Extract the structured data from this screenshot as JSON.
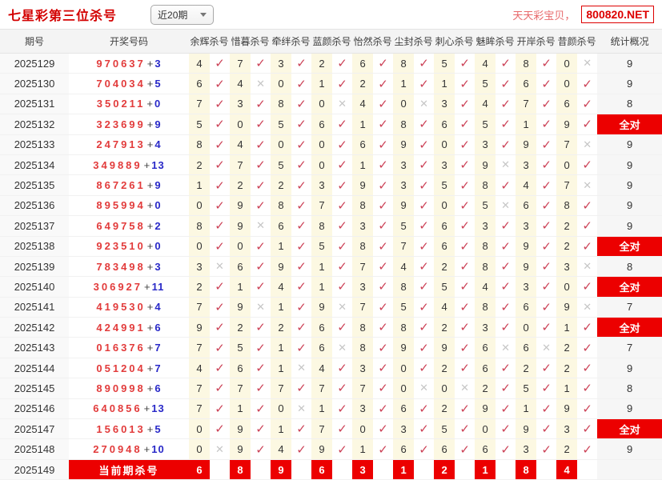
{
  "header": {
    "title": "七星彩第三位杀号",
    "range_select": {
      "value": "近20期"
    },
    "site_name": "天天彩宝贝，",
    "site_domain": "800820.NET"
  },
  "table": {
    "columns": {
      "period": "期号",
      "draw": "开奖号码",
      "experts": [
        "余辉杀号",
        "惜暮杀号",
        "牵绊杀号",
        "蓝颜杀号",
        "怡然杀号",
        "尘封杀号",
        "刺心杀号",
        "魅眸杀号",
        "开岸杀号",
        "昔颜杀号"
      ],
      "stats": "统计概况"
    },
    "all_correct_label": "全对",
    "rows": [
      {
        "period": "2025129",
        "front": "970637",
        "back": "3",
        "kills": [
          {
            "n": "4",
            "ok": true
          },
          {
            "n": "7",
            "ok": true
          },
          {
            "n": "3",
            "ok": true
          },
          {
            "n": "2",
            "ok": true
          },
          {
            "n": "6",
            "ok": true
          },
          {
            "n": "8",
            "ok": true
          },
          {
            "n": "5",
            "ok": true
          },
          {
            "n": "4",
            "ok": true
          },
          {
            "n": "8",
            "ok": true
          },
          {
            "n": "0",
            "ok": false
          }
        ],
        "stat": "9"
      },
      {
        "period": "2025130",
        "front": "704034",
        "back": "5",
        "kills": [
          {
            "n": "6",
            "ok": true
          },
          {
            "n": "4",
            "ok": false
          },
          {
            "n": "0",
            "ok": true
          },
          {
            "n": "1",
            "ok": true
          },
          {
            "n": "2",
            "ok": true
          },
          {
            "n": "1",
            "ok": true
          },
          {
            "n": "1",
            "ok": true
          },
          {
            "n": "5",
            "ok": true
          },
          {
            "n": "6",
            "ok": true
          },
          {
            "n": "0",
            "ok": true
          }
        ],
        "stat": "9"
      },
      {
        "period": "2025131",
        "front": "350211",
        "back": "0",
        "kills": [
          {
            "n": "7",
            "ok": true
          },
          {
            "n": "3",
            "ok": true
          },
          {
            "n": "8",
            "ok": true
          },
          {
            "n": "0",
            "ok": false
          },
          {
            "n": "4",
            "ok": true
          },
          {
            "n": "0",
            "ok": false
          },
          {
            "n": "3",
            "ok": true
          },
          {
            "n": "4",
            "ok": true
          },
          {
            "n": "7",
            "ok": true
          },
          {
            "n": "6",
            "ok": true
          }
        ],
        "stat": "8"
      },
      {
        "period": "2025132",
        "front": "323699",
        "back": "9",
        "kills": [
          {
            "n": "5",
            "ok": true
          },
          {
            "n": "0",
            "ok": true
          },
          {
            "n": "5",
            "ok": true
          },
          {
            "n": "6",
            "ok": true
          },
          {
            "n": "1",
            "ok": true
          },
          {
            "n": "8",
            "ok": true
          },
          {
            "n": "6",
            "ok": true
          },
          {
            "n": "5",
            "ok": true
          },
          {
            "n": "1",
            "ok": true
          },
          {
            "n": "9",
            "ok": true
          }
        ],
        "stat": "全对"
      },
      {
        "period": "2025133",
        "front": "247913",
        "back": "4",
        "kills": [
          {
            "n": "8",
            "ok": true
          },
          {
            "n": "4",
            "ok": true
          },
          {
            "n": "0",
            "ok": true
          },
          {
            "n": "0",
            "ok": true
          },
          {
            "n": "6",
            "ok": true
          },
          {
            "n": "9",
            "ok": true
          },
          {
            "n": "0",
            "ok": true
          },
          {
            "n": "3",
            "ok": true
          },
          {
            "n": "9",
            "ok": true
          },
          {
            "n": "7",
            "ok": false
          }
        ],
        "stat": "9"
      },
      {
        "period": "2025134",
        "front": "349889",
        "back": "13",
        "kills": [
          {
            "n": "2",
            "ok": true
          },
          {
            "n": "7",
            "ok": true
          },
          {
            "n": "5",
            "ok": true
          },
          {
            "n": "0",
            "ok": true
          },
          {
            "n": "1",
            "ok": true
          },
          {
            "n": "3",
            "ok": true
          },
          {
            "n": "3",
            "ok": true
          },
          {
            "n": "9",
            "ok": false
          },
          {
            "n": "3",
            "ok": true
          },
          {
            "n": "0",
            "ok": true
          }
        ],
        "stat": "9"
      },
      {
        "period": "2025135",
        "front": "867261",
        "back": "9",
        "kills": [
          {
            "n": "1",
            "ok": true
          },
          {
            "n": "2",
            "ok": true
          },
          {
            "n": "2",
            "ok": true
          },
          {
            "n": "3",
            "ok": true
          },
          {
            "n": "9",
            "ok": true
          },
          {
            "n": "3",
            "ok": true
          },
          {
            "n": "5",
            "ok": true
          },
          {
            "n": "8",
            "ok": true
          },
          {
            "n": "4",
            "ok": true
          },
          {
            "n": "7",
            "ok": false
          }
        ],
        "stat": "9"
      },
      {
        "period": "2025136",
        "front": "895994",
        "back": "0",
        "kills": [
          {
            "n": "0",
            "ok": true
          },
          {
            "n": "9",
            "ok": true
          },
          {
            "n": "8",
            "ok": true
          },
          {
            "n": "7",
            "ok": true
          },
          {
            "n": "8",
            "ok": true
          },
          {
            "n": "9",
            "ok": true
          },
          {
            "n": "0",
            "ok": true
          },
          {
            "n": "5",
            "ok": false
          },
          {
            "n": "6",
            "ok": true
          },
          {
            "n": "8",
            "ok": true
          }
        ],
        "stat": "9"
      },
      {
        "period": "2025137",
        "front": "649758",
        "back": "2",
        "kills": [
          {
            "n": "8",
            "ok": true
          },
          {
            "n": "9",
            "ok": false
          },
          {
            "n": "6",
            "ok": true
          },
          {
            "n": "8",
            "ok": true
          },
          {
            "n": "3",
            "ok": true
          },
          {
            "n": "5",
            "ok": true
          },
          {
            "n": "6",
            "ok": true
          },
          {
            "n": "3",
            "ok": true
          },
          {
            "n": "3",
            "ok": true
          },
          {
            "n": "2",
            "ok": true
          }
        ],
        "stat": "9"
      },
      {
        "period": "2025138",
        "front": "923510",
        "back": "0",
        "kills": [
          {
            "n": "0",
            "ok": true
          },
          {
            "n": "0",
            "ok": true
          },
          {
            "n": "1",
            "ok": true
          },
          {
            "n": "5",
            "ok": true
          },
          {
            "n": "8",
            "ok": true
          },
          {
            "n": "7",
            "ok": true
          },
          {
            "n": "6",
            "ok": true
          },
          {
            "n": "8",
            "ok": true
          },
          {
            "n": "9",
            "ok": true
          },
          {
            "n": "2",
            "ok": true
          }
        ],
        "stat": "全对"
      },
      {
        "period": "2025139",
        "front": "783498",
        "back": "3",
        "kills": [
          {
            "n": "3",
            "ok": false
          },
          {
            "n": "6",
            "ok": true
          },
          {
            "n": "9",
            "ok": true
          },
          {
            "n": "1",
            "ok": true
          },
          {
            "n": "7",
            "ok": true
          },
          {
            "n": "4",
            "ok": true
          },
          {
            "n": "2",
            "ok": true
          },
          {
            "n": "8",
            "ok": true
          },
          {
            "n": "9",
            "ok": true
          },
          {
            "n": "3",
            "ok": false
          }
        ],
        "stat": "8"
      },
      {
        "period": "2025140",
        "front": "306927",
        "back": "11",
        "kills": [
          {
            "n": "2",
            "ok": true
          },
          {
            "n": "1",
            "ok": true
          },
          {
            "n": "4",
            "ok": true
          },
          {
            "n": "1",
            "ok": true
          },
          {
            "n": "3",
            "ok": true
          },
          {
            "n": "8",
            "ok": true
          },
          {
            "n": "5",
            "ok": true
          },
          {
            "n": "4",
            "ok": true
          },
          {
            "n": "3",
            "ok": true
          },
          {
            "n": "0",
            "ok": true
          }
        ],
        "stat": "全对"
      },
      {
        "period": "2025141",
        "front": "419530",
        "back": "4",
        "kills": [
          {
            "n": "7",
            "ok": true
          },
          {
            "n": "9",
            "ok": false
          },
          {
            "n": "1",
            "ok": true
          },
          {
            "n": "9",
            "ok": false
          },
          {
            "n": "7",
            "ok": true
          },
          {
            "n": "5",
            "ok": true
          },
          {
            "n": "4",
            "ok": true
          },
          {
            "n": "8",
            "ok": true
          },
          {
            "n": "6",
            "ok": true
          },
          {
            "n": "9",
            "ok": false
          }
        ],
        "stat": "7"
      },
      {
        "period": "2025142",
        "front": "424991",
        "back": "6",
        "kills": [
          {
            "n": "9",
            "ok": true
          },
          {
            "n": "2",
            "ok": true
          },
          {
            "n": "2",
            "ok": true
          },
          {
            "n": "6",
            "ok": true
          },
          {
            "n": "8",
            "ok": true
          },
          {
            "n": "8",
            "ok": true
          },
          {
            "n": "2",
            "ok": true
          },
          {
            "n": "3",
            "ok": true
          },
          {
            "n": "0",
            "ok": true
          },
          {
            "n": "1",
            "ok": true
          }
        ],
        "stat": "全对"
      },
      {
        "period": "2025143",
        "front": "016376",
        "back": "7",
        "kills": [
          {
            "n": "7",
            "ok": true
          },
          {
            "n": "5",
            "ok": true
          },
          {
            "n": "1",
            "ok": true
          },
          {
            "n": "6",
            "ok": false
          },
          {
            "n": "8",
            "ok": true
          },
          {
            "n": "9",
            "ok": true
          },
          {
            "n": "9",
            "ok": true
          },
          {
            "n": "6",
            "ok": false
          },
          {
            "n": "6",
            "ok": false
          },
          {
            "n": "2",
            "ok": true
          }
        ],
        "stat": "7"
      },
      {
        "period": "2025144",
        "front": "051204",
        "back": "7",
        "kills": [
          {
            "n": "4",
            "ok": true
          },
          {
            "n": "6",
            "ok": true
          },
          {
            "n": "1",
            "ok": false
          },
          {
            "n": "4",
            "ok": true
          },
          {
            "n": "3",
            "ok": true
          },
          {
            "n": "0",
            "ok": true
          },
          {
            "n": "2",
            "ok": true
          },
          {
            "n": "6",
            "ok": true
          },
          {
            "n": "2",
            "ok": true
          },
          {
            "n": "2",
            "ok": true
          }
        ],
        "stat": "9"
      },
      {
        "period": "2025145",
        "front": "890998",
        "back": "6",
        "kills": [
          {
            "n": "7",
            "ok": true
          },
          {
            "n": "7",
            "ok": true
          },
          {
            "n": "7",
            "ok": true
          },
          {
            "n": "7",
            "ok": true
          },
          {
            "n": "7",
            "ok": true
          },
          {
            "n": "0",
            "ok": false
          },
          {
            "n": "0",
            "ok": false
          },
          {
            "n": "2",
            "ok": true
          },
          {
            "n": "5",
            "ok": true
          },
          {
            "n": "1",
            "ok": true
          }
        ],
        "stat": "8"
      },
      {
        "period": "2025146",
        "front": "640856",
        "back": "13",
        "kills": [
          {
            "n": "7",
            "ok": true
          },
          {
            "n": "1",
            "ok": true
          },
          {
            "n": "0",
            "ok": false
          },
          {
            "n": "1",
            "ok": true
          },
          {
            "n": "3",
            "ok": true
          },
          {
            "n": "6",
            "ok": true
          },
          {
            "n": "2",
            "ok": true
          },
          {
            "n": "9",
            "ok": true
          },
          {
            "n": "1",
            "ok": true
          },
          {
            "n": "9",
            "ok": true
          }
        ],
        "stat": "9"
      },
      {
        "period": "2025147",
        "front": "156013",
        "back": "5",
        "kills": [
          {
            "n": "0",
            "ok": true
          },
          {
            "n": "9",
            "ok": true
          },
          {
            "n": "1",
            "ok": true
          },
          {
            "n": "7",
            "ok": true
          },
          {
            "n": "0",
            "ok": true
          },
          {
            "n": "3",
            "ok": true
          },
          {
            "n": "5",
            "ok": true
          },
          {
            "n": "0",
            "ok": true
          },
          {
            "n": "9",
            "ok": true
          },
          {
            "n": "3",
            "ok": true
          }
        ],
        "stat": "全对"
      },
      {
        "period": "2025148",
        "front": "270948",
        "back": "10",
        "kills": [
          {
            "n": "0",
            "ok": false
          },
          {
            "n": "9",
            "ok": true
          },
          {
            "n": "4",
            "ok": true
          },
          {
            "n": "9",
            "ok": true
          },
          {
            "n": "1",
            "ok": true
          },
          {
            "n": "6",
            "ok": true
          },
          {
            "n": "6",
            "ok": true
          },
          {
            "n": "6",
            "ok": true
          },
          {
            "n": "3",
            "ok": true
          },
          {
            "n": "2",
            "ok": true
          }
        ],
        "stat": "9"
      }
    ],
    "current": {
      "period": "2025149",
      "label": "当前期杀号",
      "kills": [
        "6",
        "8",
        "9",
        "6",
        "3",
        "1",
        "2",
        "1",
        "8",
        "4"
      ],
      "stat": ""
    }
  },
  "colors": {
    "title": "#d30000",
    "site_text": "#e8696b",
    "domain_text": "#dd0000",
    "domain_border": "#dd0000",
    "front_digit": "#e23b3b",
    "back_digit": "#2929c8",
    "check": "#cc4257",
    "miss": "#c6c6c6",
    "all_correct_bg": "#ec0000",
    "current_bg": "#ec0000",
    "num_cell_bg": "#fcf8e2",
    "header_bg": "#f4f4f4",
    "stat_bg": "#f6f6f6",
    "period_bg": "#f9f9f9"
  }
}
